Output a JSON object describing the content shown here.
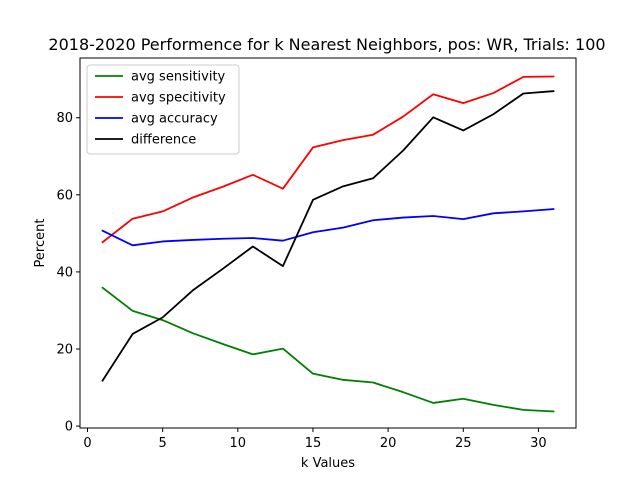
{
  "chart_data": {
    "type": "line",
    "title": "2018-2020 Performence for k Nearest Neighbors, pos: WR, Trials: 100",
    "xlabel": "k Values",
    "ylabel": "Percent",
    "xlim": [
      -0.5,
      32.5
    ],
    "ylim": [
      -0.5,
      95.5
    ],
    "xticks": [
      0,
      5,
      10,
      15,
      20,
      25,
      30
    ],
    "yticks": [
      0,
      20,
      40,
      60,
      80
    ],
    "grid": false,
    "legend_position": "upper-left",
    "x": [
      1,
      3,
      5,
      7,
      9,
      11,
      13,
      15,
      17,
      19,
      21,
      23,
      25,
      27,
      29,
      31
    ],
    "series": [
      {
        "name": "avg sensitivity",
        "color": "#008000",
        "values": [
          35.9,
          29.9,
          27.5,
          24.1,
          21.3,
          18.6,
          20.1,
          13.6,
          12.0,
          11.3,
          8.8,
          6.0,
          7.1,
          5.5,
          4.2,
          3.8
        ]
      },
      {
        "name": "avg specitivity",
        "color": "#ff0000",
        "values": [
          47.7,
          53.8,
          55.7,
          59.3,
          62.1,
          65.2,
          61.6,
          72.3,
          74.2,
          75.6,
          80.3,
          86.1,
          83.8,
          86.4,
          90.6,
          90.7
        ]
      },
      {
        "name": "avg accuracy",
        "color": "#0000ff",
        "values": [
          50.7,
          46.9,
          47.9,
          48.3,
          48.6,
          48.8,
          48.1,
          50.3,
          51.5,
          53.4,
          54.1,
          54.5,
          53.7,
          55.2,
          55.7,
          56.3
        ]
      },
      {
        "name": "difference",
        "color": "#000000",
        "values": [
          11.8,
          23.9,
          28.2,
          35.2,
          40.8,
          46.6,
          41.5,
          58.7,
          62.2,
          64.3,
          71.5,
          80.1,
          76.7,
          80.9,
          86.3,
          86.9
        ]
      }
    ]
  }
}
